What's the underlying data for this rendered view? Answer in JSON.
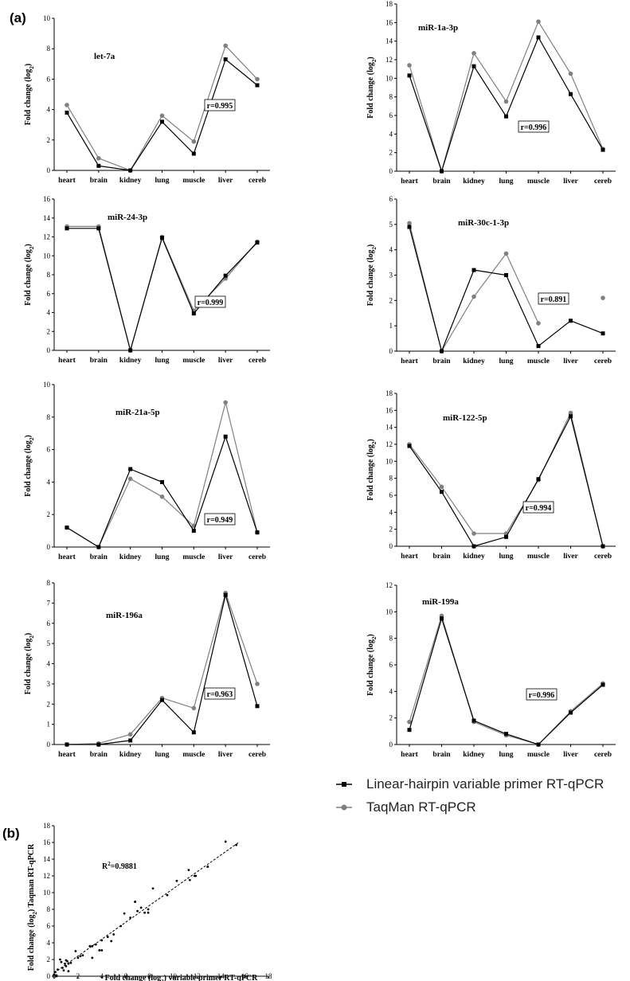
{
  "panel_labels": {
    "a": "(a)",
    "b": "(b)"
  },
  "legend": [
    {
      "label": "Linear-hairpin variable primer RT-qPCR",
      "color": "#000000",
      "marker": "square"
    },
    {
      "label": "TaqMan RT-qPCR",
      "color": "#808080",
      "marker": "circle"
    }
  ],
  "chart_data": [
    {
      "type": "line",
      "title": "let-7a",
      "categories": [
        "heart",
        "brain",
        "kidney",
        "lung",
        "muscle",
        "liver",
        "cereb"
      ],
      "ylabel": "Fold change (log2)",
      "ylim": [
        0,
        10
      ],
      "yticks": [
        0,
        2,
        4,
        6,
        8,
        10
      ],
      "annotation": "r=0.995",
      "series": [
        {
          "name": "Linear-hairpin variable primer RT-qPCR",
          "values": [
            3.8,
            0.3,
            0.0,
            3.2,
            1.1,
            7.3,
            5.6
          ]
        },
        {
          "name": "TaqMan RT-qPCR",
          "values": [
            4.3,
            0.8,
            0.0,
            3.6,
            1.9,
            8.2,
            6.0
          ]
        }
      ]
    },
    {
      "type": "line",
      "title": "miR-1a-3p",
      "categories": [
        "heart",
        "brain",
        "kidney",
        "lung",
        "muscle",
        "liver",
        "cereb"
      ],
      "ylabel": "Fold change (log2)",
      "ylim": [
        0,
        18
      ],
      "yticks": [
        0,
        2,
        4,
        6,
        8,
        10,
        12,
        14,
        16,
        18
      ],
      "annotation": "r=0.996",
      "series": [
        {
          "name": "Linear-hairpin variable primer RT-qPCR",
          "values": [
            10.3,
            0.0,
            11.3,
            5.9,
            14.4,
            8.3,
            2.3
          ]
        },
        {
          "name": "TaqMan RT-qPCR",
          "values": [
            11.4,
            0.0,
            12.7,
            7.5,
            16.1,
            10.5,
            2.4
          ]
        }
      ]
    },
    {
      "type": "line",
      "title": "miR-24-3p",
      "categories": [
        "heart",
        "brain",
        "kidney",
        "lung",
        "muscle",
        "liver",
        "cereb"
      ],
      "ylabel": "Fold change (log2)",
      "ylim": [
        0,
        16
      ],
      "yticks": [
        0,
        2,
        4,
        6,
        8,
        10,
        12,
        14,
        16
      ],
      "annotation": "r=0.999",
      "series": [
        {
          "name": "Linear-hairpin variable primer RT-qPCR",
          "values": [
            12.9,
            12.9,
            0.0,
            11.9,
            3.9,
            7.9,
            11.4
          ]
        },
        {
          "name": "TaqMan RT-qPCR",
          "values": [
            13.1,
            13.1,
            0.0,
            12.0,
            4.2,
            7.6,
            11.5
          ]
        }
      ]
    },
    {
      "type": "line",
      "title": "miR-30c-1-3p",
      "categories": [
        "heart",
        "brain",
        "kidney",
        "lung",
        "muscle",
        "liver",
        "cereb"
      ],
      "ylabel": "Fold change (log2)",
      "ylim": [
        0,
        6
      ],
      "yticks": [
        0,
        1,
        2,
        3,
        4,
        5,
        6
      ],
      "annotation": "r=0.891",
      "series": [
        {
          "name": "Linear-hairpin variable primer RT-qPCR",
          "values": [
            4.9,
            0.0,
            3.2,
            3.0,
            0.2,
            1.2,
            0.7
          ]
        },
        {
          "name": "TaqMan RT-qPCR",
          "values": [
            5.05,
            0.0,
            2.15,
            3.85,
            1.1,
            null,
            2.1
          ]
        }
      ]
    },
    {
      "type": "line",
      "title": "miR-21a-5p",
      "categories": [
        "heart",
        "brain",
        "kidney",
        "lung",
        "muscle",
        "liver",
        "cereb"
      ],
      "ylabel": "Fold change (log2)",
      "ylim": [
        0,
        10
      ],
      "yticks": [
        0,
        2,
        4,
        6,
        8,
        10
      ],
      "annotation": "r=0.949",
      "series": [
        {
          "name": "Linear-hairpin variable primer RT-qPCR",
          "values": [
            1.2,
            0.0,
            4.8,
            4.0,
            1.0,
            6.8,
            0.9
          ]
        },
        {
          "name": "TaqMan RT-qPCR",
          "values": [
            1.2,
            0.0,
            4.2,
            3.1,
            1.3,
            8.9,
            0.9
          ]
        }
      ]
    },
    {
      "type": "line",
      "title": "miR-122-5p",
      "categories": [
        "heart",
        "brain",
        "kidney",
        "lung",
        "muscle",
        "liver",
        "cereb"
      ],
      "ylabel": "Fold change (log2)",
      "ylim": [
        0,
        18
      ],
      "yticks": [
        0,
        2,
        4,
        6,
        8,
        10,
        12,
        14,
        16,
        18
      ],
      "annotation": "r=0.994",
      "series": [
        {
          "name": "Linear-hairpin variable primer RT-qPCR",
          "values": [
            11.8,
            6.4,
            0.0,
            1.1,
            7.9,
            15.3,
            0.0
          ]
        },
        {
          "name": "TaqMan RT-qPCR",
          "values": [
            12.0,
            7.0,
            1.5,
            1.5,
            7.8,
            15.7,
            0.0
          ]
        }
      ]
    },
    {
      "type": "line",
      "title": "miR-196a",
      "categories": [
        "heart",
        "brain",
        "kidney",
        "lung",
        "muscle",
        "liver",
        "cereb"
      ],
      "ylabel": "Fold change (log2)",
      "ylim": [
        0,
        8
      ],
      "yticks": [
        0,
        1,
        2,
        3,
        4,
        5,
        6,
        7,
        8
      ],
      "annotation": "r=0.963",
      "series": [
        {
          "name": "Linear-hairpin variable primer RT-qPCR",
          "values": [
            0.0,
            0.0,
            0.2,
            2.2,
            0.6,
            7.4,
            1.9
          ]
        },
        {
          "name": "TaqMan RT-qPCR",
          "values": [
            0.0,
            0.05,
            0.5,
            2.3,
            1.8,
            7.5,
            3.0
          ]
        }
      ]
    },
    {
      "type": "line",
      "title": "miR-199a",
      "categories": [
        "heart",
        "brain",
        "kidney",
        "lung",
        "muscle",
        "liver",
        "cereb"
      ],
      "ylabel": "Fold change (log2)",
      "ylim": [
        0,
        12
      ],
      "yticks": [
        0,
        2,
        4,
        6,
        8,
        10,
        12
      ],
      "annotation": "r=0.996",
      "series": [
        {
          "name": "Linear-hairpin variable primer RT-qPCR",
          "values": [
            1.1,
            9.5,
            1.8,
            0.8,
            0.0,
            2.4,
            4.5
          ]
        },
        {
          "name": "TaqMan RT-qPCR",
          "values": [
            1.7,
            9.7,
            1.7,
            0.7,
            0.0,
            2.5,
            4.6
          ]
        }
      ]
    },
    {
      "type": "scatter",
      "xlabel": "Fold change (log2) variable primer RT-qPCR",
      "ylabel": "Fold change (log2) Taqman RT-qPCR",
      "xlim": [
        0,
        18
      ],
      "ylim": [
        0,
        18
      ],
      "xticks": [
        0,
        2,
        4,
        6,
        8,
        10,
        12,
        14,
        16,
        18
      ],
      "yticks": [
        0,
        2,
        4,
        6,
        8,
        10,
        12,
        14,
        16,
        18
      ],
      "annotation": "R2=0.9881",
      "trendline": {
        "x": [
          0,
          15.5
        ],
        "y": [
          0.4,
          16.0
        ]
      },
      "points": {
        "x": [
          0.1,
          0.3,
          0.5,
          0.7,
          0.9,
          1.0,
          1.1,
          1.2,
          1.4,
          0.0,
          0.2,
          0.6,
          1.0,
          1.8,
          2.0,
          2.2,
          2.4,
          3.0,
          3.2,
          3.5,
          3.8,
          4.0,
          4.5,
          4.8,
          5.0,
          5.6,
          5.9,
          6.4,
          6.8,
          7.0,
          7.3,
          7.6,
          7.9,
          7.9,
          8.3,
          9.5,
          10.3,
          11.3,
          11.4,
          11.8,
          11.9,
          12.9,
          12.9,
          14.4,
          15.3,
          6.8,
          0.8,
          0.2,
          3.2,
          1.2,
          4.0
        ],
        "y": [
          0.5,
          0.8,
          2.0,
          1.0,
          1.5,
          1.2,
          1.8,
          0.6,
          1.6,
          0.2,
          0.0,
          1.7,
          1.9,
          3.0,
          2.2,
          2.4,
          2.5,
          3.6,
          2.2,
          3.8,
          3.1,
          4.3,
          4.7,
          4.2,
          5.0,
          6.0,
          7.5,
          7.0,
          8.9,
          7.8,
          8.2,
          7.6,
          7.6,
          8.0,
          10.5,
          9.7,
          11.4,
          12.7,
          11.5,
          12.0,
          12.0,
          13.1,
          13.1,
          16.1,
          15.7,
          8.9,
          0.7,
          0.1,
          3.6,
          1.5,
          3.1
        ]
      }
    }
  ]
}
